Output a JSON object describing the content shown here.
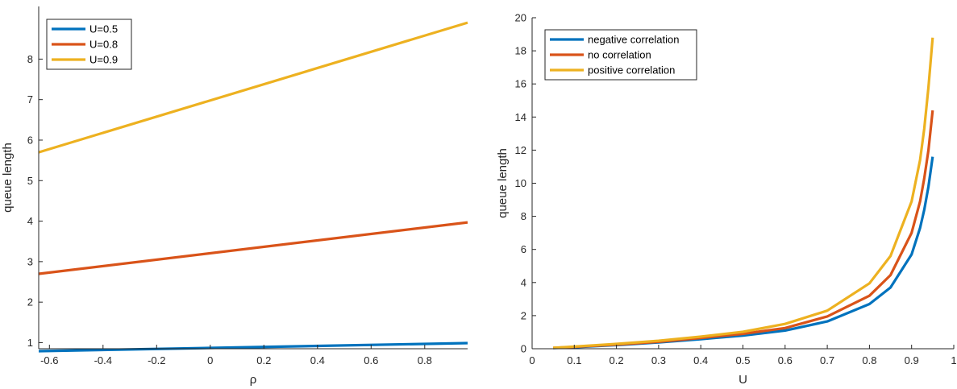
{
  "chart_data": [
    {
      "type": "line",
      "xlabel": "ρ",
      "ylabel": "queue length",
      "xlim": [
        -0.64,
        0.96
      ],
      "ylim": [
        0.85,
        9.3
      ],
      "xticks": [
        -0.6,
        -0.4,
        -0.2,
        0,
        0.2,
        0.4,
        0.6,
        0.8
      ],
      "xtick_labels": [
        "-0.6",
        "-0.4",
        "-0.2",
        "0",
        "0.2",
        "0.4",
        "0.6",
        "0.8"
      ],
      "yticks": [
        1,
        2,
        3,
        4,
        5,
        6,
        7,
        8
      ],
      "ytick_labels": [
        "1",
        "2",
        "3",
        "4",
        "5",
        "6",
        "7",
        "8"
      ],
      "legend_position": "top-left",
      "grid": false,
      "series": [
        {
          "name": "U=0.5",
          "color": "#0072BD",
          "x": [
            -0.64,
            0.96
          ],
          "y": [
            0.79,
            0.99
          ]
        },
        {
          "name": "U=0.8",
          "color": "#D95319",
          "x": [
            -0.64,
            0.96
          ],
          "y": [
            2.7,
            3.97
          ]
        },
        {
          "name": "U=0.9",
          "color": "#EDB120",
          "x": [
            -0.64,
            0.96
          ],
          "y": [
            5.7,
            8.9
          ]
        }
      ]
    },
    {
      "type": "line",
      "xlabel": "U",
      "ylabel": "queue length",
      "xlim": [
        0,
        1
      ],
      "ylim": [
        0,
        20
      ],
      "xticks": [
        0,
        0.1,
        0.2,
        0.3,
        0.4,
        0.5,
        0.6,
        0.7,
        0.8,
        0.9,
        1
      ],
      "xtick_labels": [
        "0",
        "0.1",
        "0.2",
        "0.3",
        "0.4",
        "0.5",
        "0.6",
        "0.7",
        "0.8",
        "0.9",
        "1"
      ],
      "yticks": [
        0,
        2,
        4,
        6,
        8,
        10,
        12,
        14,
        16,
        18,
        20
      ],
      "ytick_labels": [
        "0",
        "2",
        "4",
        "6",
        "8",
        "10",
        "12",
        "14",
        "16",
        "18",
        "20"
      ],
      "legend_position": "top-left",
      "grid": false,
      "series": [
        {
          "name": "negative correlation",
          "color": "#0072BD",
          "x": [
            0.05,
            0.1,
            0.2,
            0.3,
            0.4,
            0.5,
            0.6,
            0.7,
            0.8,
            0.85,
            0.9,
            0.92,
            0.93,
            0.94,
            0.95
          ],
          "y": [
            0.04,
            0.09,
            0.22,
            0.38,
            0.58,
            0.8,
            1.1,
            1.65,
            2.7,
            3.7,
            5.7,
            7.3,
            8.4,
            9.8,
            11.6
          ]
        },
        {
          "name": "no correlation",
          "color": "#D95319",
          "x": [
            0.05,
            0.1,
            0.2,
            0.3,
            0.4,
            0.5,
            0.6,
            0.7,
            0.8,
            0.85,
            0.9,
            0.92,
            0.93,
            0.94,
            0.95
          ],
          "y": [
            0.05,
            0.11,
            0.25,
            0.42,
            0.65,
            0.9,
            1.25,
            1.95,
            3.2,
            4.45,
            7.0,
            8.9,
            10.3,
            12.0,
            14.4
          ]
        },
        {
          "name": "positive correlation",
          "color": "#EDB120",
          "x": [
            0.05,
            0.1,
            0.2,
            0.3,
            0.4,
            0.5,
            0.6,
            0.7,
            0.8,
            0.85,
            0.9,
            0.92,
            0.93,
            0.94,
            0.95
          ],
          "y": [
            0.06,
            0.13,
            0.29,
            0.48,
            0.73,
            1.02,
            1.5,
            2.3,
            3.95,
            5.6,
            8.9,
            11.4,
            13.3,
            15.8,
            18.8
          ]
        }
      ]
    }
  ]
}
